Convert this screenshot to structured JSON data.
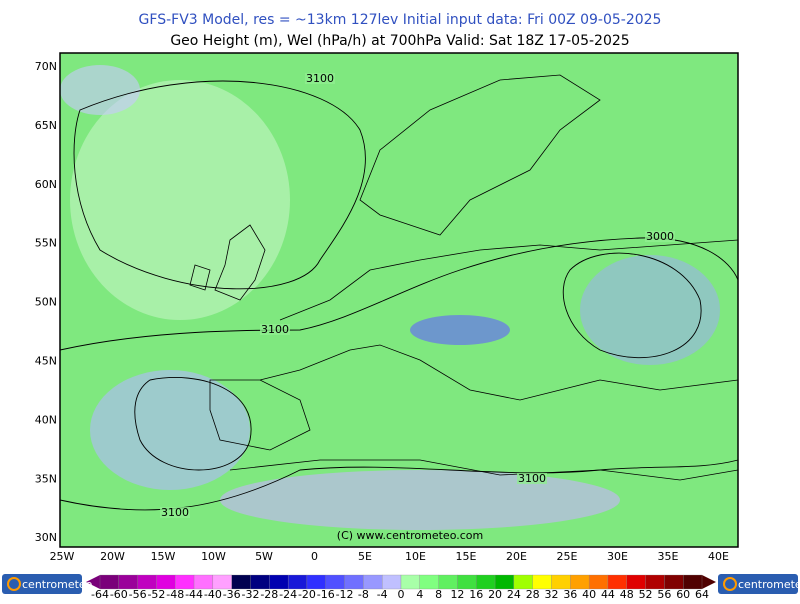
{
  "header": {
    "title": "GFS-FV3 Model, res = ~13km 127lev    Initial input data: Fri 00Z 09-05-2025",
    "subtitle": "Geo Height (m), Wel (hPa/h) at 700hPa  Valid: Sat 18Z 17-05-2025"
  },
  "map": {
    "lat_labels": [
      "70N",
      "65N",
      "60N",
      "55N",
      "50N",
      "45N",
      "40N",
      "35N",
      "30N"
    ],
    "lon_labels": [
      "25W",
      "20W",
      "15W",
      "10W",
      "5W",
      "0",
      "5E",
      "10E",
      "15E",
      "20E",
      "25E",
      "30E",
      "35E",
      "40E"
    ],
    "contour_labels": [
      "3100",
      "3100",
      "3100",
      "3100",
      "3000"
    ],
    "copyright": "(C) www.centrometeo.com"
  },
  "colorbar": {
    "labels": [
      "-64",
      "-60",
      "-56",
      "-52",
      "-48",
      "-44",
      "-40",
      "-36",
      "-32",
      "-28",
      "-24",
      "-20",
      "-16",
      "-12",
      "-8",
      "-4",
      "0",
      "4",
      "8",
      "12",
      "16",
      "20",
      "24",
      "28",
      "32",
      "36",
      "40",
      "44",
      "48",
      "52",
      "56",
      "60",
      "64"
    ],
    "colors": [
      "#7a007a",
      "#9a009a",
      "#c000c0",
      "#e000e0",
      "#ff30ff",
      "#ff70ff",
      "#ffa0ff",
      "#000050",
      "#000080",
      "#0000b0",
      "#1818d8",
      "#3030ff",
      "#5050ff",
      "#7070ff",
      "#9898ff",
      "#c0c0ff",
      "#a8ffa8",
      "#80ff80",
      "#60f060",
      "#40e040",
      "#20d020",
      "#00b800",
      "#a0ff00",
      "#ffff00",
      "#ffd000",
      "#ffa000",
      "#ff7000",
      "#ff3000",
      "#e00000",
      "#b00000",
      "#800000",
      "#500000"
    ]
  },
  "logos": {
    "left": "centrometeo",
    "right": "centrometeo"
  }
}
